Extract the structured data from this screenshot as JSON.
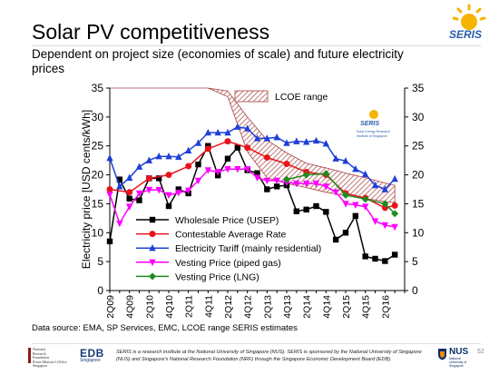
{
  "header": {
    "title": "Solar PV competitiveness",
    "subtitle": "Dependent on project size (economies of scale) and future electricity prices"
  },
  "source_note": "Data source: EMA, SP Services, EMC, LCOE range SERIS estimates",
  "seris_logo": {
    "wordmark": "SERIS",
    "inset_lines": [
      "Solar Energy Research",
      "Institute of Singapore"
    ]
  },
  "footer": {
    "nrf_lines": [
      "National",
      "Research",
      "Foundation",
      "Prime Minister's Office",
      "Singapore"
    ],
    "edb_label": "EDB",
    "edb_sub": "Singapore",
    "disclaimer": "SERIS is a research institute at the National University of Singapore (NUS). SERIS is sponsored by the National University of Singapore (NUS) and Singapore's National Research Foundation (NRF) through the Singapore Economic Development Board (EDB).",
    "nus_label": "NUS",
    "nus_sub": "National University of Singapore",
    "page_number": "52"
  },
  "colors": {
    "wholesale": "#000000",
    "contestable": "#e8141c",
    "tariff": "#1f3fd6",
    "vesting_gas": "#ff00ff",
    "vesting_lng": "#1f8a1f",
    "lcoe_band": "#a84040"
  },
  "chart_data": {
    "type": "line",
    "title": "",
    "xlabel": "",
    "ylabel": "Electricity price [USD cents/kWh]",
    "ylim": [
      0,
      35
    ],
    "yticks": [
      0,
      5,
      10,
      15,
      20,
      25,
      30,
      35
    ],
    "right_axis_ticks": [
      0,
      5,
      10,
      15,
      20,
      25,
      30,
      35
    ],
    "x_tick_labels": [
      "2Q09",
      "4Q09",
      "2Q10",
      "4Q10",
      "2Q11",
      "4Q11",
      "2Q12",
      "4Q12",
      "2Q13",
      "4Q13",
      "2Q14",
      "4Q14",
      "2Q15",
      "4Q15",
      "2Q16"
    ],
    "x_range": [
      0,
      30
    ],
    "grid": false,
    "legend_position": "lower-left",
    "series": [
      {
        "name": "Wholesale Price (USEP)",
        "key": "wholesale",
        "marker": "square",
        "x": [
          0,
          1,
          2,
          3,
          4,
          5,
          6,
          7,
          8,
          9,
          10,
          11,
          12,
          13,
          14,
          15,
          16,
          17,
          18,
          19,
          20,
          21,
          22,
          23,
          24,
          25,
          26,
          27,
          28,
          29
        ],
        "y": [
          8.5,
          19.2,
          15.9,
          15.6,
          19.4,
          19.4,
          14.6,
          17.5,
          16.8,
          21.8,
          25.0,
          19.9,
          22.8,
          24.7,
          20.8,
          20.3,
          17.5,
          18.0,
          18.2,
          13.7,
          14.0,
          14.6,
          13.6,
          8.8,
          10.0,
          12.9,
          5.9,
          5.5,
          5.1,
          6.2
        ]
      },
      {
        "name": "Contestable Average Rate",
        "key": "contestable",
        "marker": "circle",
        "x": [
          0,
          2,
          4,
          6,
          8,
          10,
          12,
          14,
          16,
          18,
          20,
          22,
          24,
          26,
          28,
          29
        ],
        "y": [
          17.5,
          17.0,
          19.4,
          20.0,
          21.5,
          24.5,
          25.8,
          24.7,
          23.0,
          21.9,
          20.5,
          20.0,
          16.8,
          16.0,
          14.3,
          14.7
        ]
      },
      {
        "name": "Electricity Tariff (mainly residential)",
        "key": "tariff",
        "marker": "triangle",
        "x": [
          0,
          1,
          2,
          3,
          4,
          5,
          6,
          7,
          8,
          9,
          10,
          11,
          12,
          13,
          14,
          15,
          16,
          17,
          18,
          19,
          20,
          21,
          22,
          23,
          24,
          25,
          26,
          27,
          28,
          29
        ],
        "y": [
          22.9,
          18.0,
          19.5,
          21.4,
          22.5,
          23.2,
          23.2,
          23.1,
          24.2,
          25.5,
          27.3,
          27.3,
          27.3,
          28.3,
          28.0,
          26.3,
          26.3,
          26.5,
          25.5,
          25.8,
          25.7,
          25.9,
          25.4,
          22.8,
          22.4,
          21.0,
          20.1,
          18.2,
          17.5,
          19.3
        ]
      },
      {
        "name": "Vesting Price (piped gas)",
        "key": "vesting_gas",
        "marker": "triangle-down",
        "x": [
          0,
          1,
          2,
          3,
          4,
          5,
          6,
          7,
          8,
          9,
          10,
          11,
          12,
          13,
          14,
          15,
          16,
          17,
          18,
          19,
          20,
          21,
          22,
          23,
          24,
          25,
          26,
          27,
          28,
          29
        ],
        "y": [
          16.6,
          11.6,
          14.5,
          16.8,
          17.4,
          17.4,
          16.5,
          16.9,
          17.3,
          19.0,
          20.8,
          20.5,
          21.0,
          21.0,
          21.0,
          19.5,
          19.0,
          19.0,
          18.7,
          18.5,
          18.5,
          18.5,
          18.0,
          17.0,
          15.0,
          14.8,
          14.5,
          12.0,
          11.3,
          11.0
        ]
      },
      {
        "name": "Vesting Price (LNG)",
        "key": "vesting_lng",
        "marker": "diamond",
        "x": [
          18,
          20,
          22,
          24,
          26,
          28,
          29
        ],
        "y": [
          19.2,
          20.0,
          20.2,
          16.5,
          15.8,
          15.0,
          13.3
        ]
      }
    ],
    "band": {
      "name": "LCOE range",
      "x": [
        0,
        2,
        4,
        6,
        8,
        10,
        12,
        14,
        16,
        18,
        20,
        22,
        24,
        26,
        28,
        29
      ],
      "upper": [
        35,
        35,
        35,
        35,
        35,
        35,
        34.5,
        30.0,
        26.0,
        23.8,
        22.0,
        21.2,
        20.3,
        19.5,
        18.6,
        18.2
      ],
      "lower": [
        35,
        35,
        35,
        35,
        35,
        35,
        33.5,
        24.0,
        19.5,
        18.5,
        17.8,
        17.0,
        16.4,
        15.9,
        15.4,
        15.2
      ]
    }
  }
}
